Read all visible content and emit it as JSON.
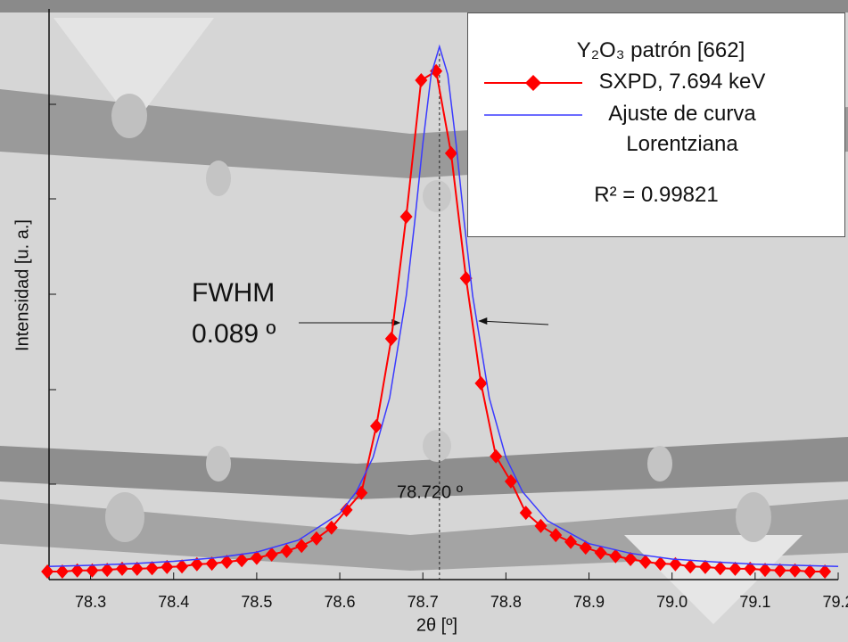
{
  "chart_data": {
    "type": "line",
    "x_label": "2θ [º]",
    "y_label": "Intensidad [u. a.]",
    "xlim": [
      78.25,
      79.2
    ],
    "ylim": [
      0,
      1
    ],
    "xticks": [
      78.3,
      78.4,
      78.5,
      78.6,
      78.7,
      78.8,
      78.9,
      {
        "value": 79.0,
        "label": "79.0"
      },
      79.1,
      79.2
    ],
    "legend_title": "Y₂O₃ patrón [662]",
    "annotations": {
      "fwhm_title": "FWHM",
      "fwhm": {
        "value": 0.089,
        "label": "0.089 º"
      },
      "peak": {
        "value": 78.72,
        "label": "78.720 º"
      },
      "r2": {
        "value": 0.99821,
        "label": "R² = 0.99821"
      }
    },
    "series": [
      {
        "name": "SXPD, 7.694 keV",
        "color": "#ff0000",
        "marker": "diamond",
        "x": [
          78.248,
          78.266,
          78.284,
          78.302,
          78.32,
          78.338,
          78.356,
          78.374,
          78.392,
          78.41,
          78.428,
          78.446,
          78.464,
          78.482,
          78.5,
          78.518,
          78.536,
          78.554,
          78.572,
          78.59,
          78.608,
          78.626,
          78.644,
          78.662,
          78.68,
          78.698,
          78.716,
          78.734,
          78.752,
          78.77,
          78.788,
          78.806,
          78.824,
          78.842,
          78.86,
          78.878,
          78.896,
          78.914,
          78.932,
          78.95,
          78.968,
          78.986,
          79.004,
          79.022,
          79.04,
          79.058,
          79.076,
          79.094,
          79.112,
          79.13,
          79.148,
          79.166,
          79.184
        ],
        "values": [
          0.014,
          0.014,
          0.016,
          0.016,
          0.017,
          0.019,
          0.019,
          0.02,
          0.022,
          0.023,
          0.027,
          0.028,
          0.031,
          0.034,
          0.038,
          0.044,
          0.05,
          0.059,
          0.072,
          0.091,
          0.122,
          0.152,
          0.269,
          0.422,
          0.636,
          0.875,
          0.891,
          0.747,
          0.528,
          0.344,
          0.216,
          0.172,
          0.117,
          0.094,
          0.078,
          0.066,
          0.056,
          0.047,
          0.041,
          0.036,
          0.031,
          0.028,
          0.027,
          0.023,
          0.022,
          0.02,
          0.019,
          0.019,
          0.017,
          0.016,
          0.016,
          0.014,
          0.014
        ]
      },
      {
        "name": "Ajuste de curva Lorentziana",
        "color": "#3a3aff",
        "marker": "none",
        "x": [
          78.25,
          78.3,
          78.35,
          78.4,
          78.45,
          78.5,
          78.55,
          78.6,
          78.62,
          78.64,
          78.66,
          78.68,
          78.69,
          78.7,
          78.71,
          78.72,
          78.73,
          78.74,
          78.75,
          78.76,
          78.78,
          78.8,
          78.82,
          78.85,
          78.9,
          78.95,
          79.0,
          79.05,
          79.1,
          79.15,
          79.2
        ],
        "values": [
          0.023,
          0.025,
          0.028,
          0.032,
          0.038,
          0.048,
          0.069,
          0.116,
          0.154,
          0.214,
          0.318,
          0.497,
          0.624,
          0.764,
          0.885,
          0.934,
          0.885,
          0.764,
          0.624,
          0.497,
          0.318,
          0.214,
          0.154,
          0.103,
          0.063,
          0.046,
          0.036,
          0.031,
          0.027,
          0.025,
          0.023
        ]
      }
    ]
  }
}
